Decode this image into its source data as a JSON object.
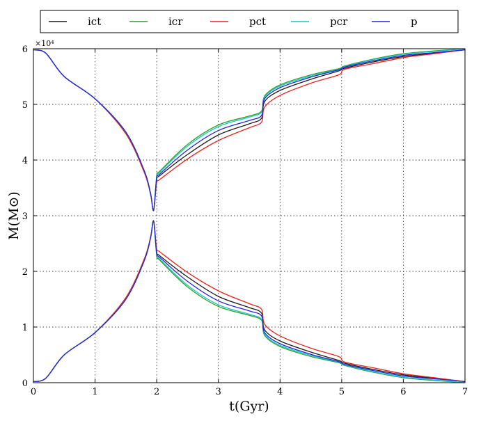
{
  "chart_data": {
    "type": "line",
    "xlabel": "t(Gyr)",
    "ylabel": "M(M⊙)",
    "y_scale_note": "×10⁴",
    "xlim": [
      0,
      7
    ],
    "ylim": [
      0,
      60000
    ],
    "x_ticks": [
      0,
      1,
      2,
      3,
      4,
      5,
      6,
      7
    ],
    "y_ticks": [
      0,
      10000,
      20000,
      30000,
      40000,
      50000,
      60000
    ],
    "y_tick_labels": [
      "0",
      "1",
      "2",
      "3",
      "4",
      "5",
      "6"
    ],
    "grid": true,
    "legend_position": "top",
    "series": [
      {
        "name": "ict",
        "color": "#1a1a1a",
        "x": [
          0,
          0.2,
          0.5,
          1.0,
          1.5,
          1.8,
          1.9,
          1.95,
          2.0,
          2.05,
          2.5,
          3.0,
          3.5,
          3.7,
          3.75,
          4.0,
          4.5,
          4.95,
          5.05,
          5.5,
          6.0,
          6.5,
          7.0
        ],
        "y_a": [
          59800,
          59200,
          55000,
          51000,
          45000,
          38000,
          34000,
          31000,
          36500,
          37200,
          41000,
          44500,
          46500,
          47500,
          50500,
          52500,
          54500,
          56000,
          56500,
          57600,
          58600,
          59200,
          59800
        ],
        "y_b": [
          200,
          800,
          5000,
          9000,
          15000,
          22000,
          26000,
          29000,
          23500,
          22800,
          19000,
          15500,
          13500,
          12500,
          9500,
          7500,
          5500,
          4000,
          3500,
          2400,
          1400,
          800,
          200
        ]
      },
      {
        "name": "icr",
        "color": "#2ca02c",
        "x": [
          0,
          0.2,
          0.5,
          1.0,
          1.5,
          1.8,
          1.9,
          1.95,
          2.0,
          2.05,
          2.5,
          3.0,
          3.5,
          3.7,
          3.75,
          4.0,
          4.5,
          4.95,
          5.05,
          5.5,
          6.0,
          6.5,
          7.0
        ],
        "y_a": [
          59800,
          59200,
          55000,
          51000,
          45000,
          38000,
          34000,
          31000,
          37200,
          38000,
          42800,
          46300,
          47900,
          48800,
          51500,
          53500,
          55300,
          56400,
          56900,
          58100,
          59100,
          59600,
          60000
        ],
        "y_b": [
          200,
          800,
          5000,
          9000,
          15000,
          22000,
          26000,
          29000,
          22800,
          22000,
          17200,
          13700,
          12100,
          11200,
          8500,
          6500,
          4700,
          3600,
          3100,
          1900,
          900,
          400,
          0
        ]
      },
      {
        "name": "pct",
        "color": "#e8231e",
        "x": [
          0,
          0.2,
          0.5,
          1.0,
          1.5,
          1.8,
          1.9,
          1.95,
          2.0,
          2.05,
          2.5,
          3.0,
          3.5,
          3.7,
          3.75,
          4.0,
          4.5,
          4.95,
          5.05,
          5.5,
          6.0,
          6.5,
          7.0
        ],
        "y_a": [
          59800,
          59200,
          55000,
          51000,
          44700,
          37700,
          33800,
          30900,
          36000,
          36500,
          40200,
          43500,
          45800,
          46800,
          49500,
          51600,
          53800,
          55300,
          56300,
          57300,
          58400,
          59100,
          59800
        ],
        "y_b": [
          200,
          800,
          5000,
          9000,
          15300,
          22300,
          26200,
          29100,
          24000,
          23500,
          19800,
          16500,
          14200,
          13200,
          10500,
          8400,
          6200,
          4700,
          3700,
          2700,
          1600,
          900,
          200
        ]
      },
      {
        "name": "pcr",
        "color": "#19c4c4",
        "x": [
          0,
          0.2,
          0.5,
          1.0,
          1.5,
          1.8,
          1.9,
          1.95,
          2.0,
          2.05,
          2.5,
          3.0,
          3.5,
          3.7,
          3.75,
          4.0,
          4.5,
          4.95,
          5.05,
          5.5,
          6.0,
          6.5,
          7.0
        ],
        "y_a": [
          59800,
          59200,
          55000,
          51000,
          45000,
          38000,
          34000,
          31000,
          37000,
          37800,
          42500,
          46000,
          47700,
          48600,
          51300,
          53300,
          55100,
          56300,
          56800,
          58000,
          59000,
          59500,
          60000
        ],
        "y_b": [
          200,
          800,
          5000,
          9000,
          15000,
          22000,
          26000,
          29000,
          23000,
          22200,
          17500,
          14000,
          12300,
          11400,
          8700,
          6700,
          4900,
          3700,
          3200,
          2000,
          1000,
          500,
          0
        ]
      },
      {
        "name": "p",
        "color": "#2323e0",
        "x": [
          0,
          0.2,
          0.5,
          1.0,
          1.5,
          1.8,
          1.9,
          1.95,
          2.0,
          2.05,
          2.5,
          3.0,
          3.5,
          3.7,
          3.75,
          4.0,
          4.5,
          4.95,
          5.05,
          5.5,
          6.0,
          6.5,
          7.0
        ],
        "y_a": [
          59800,
          59200,
          55000,
          51000,
          45000,
          38000,
          34000,
          31000,
          36800,
          37500,
          41800,
          45300,
          47100,
          48000,
          51000,
          53000,
          54900,
          56200,
          56700,
          57800,
          58800,
          59300,
          59800
        ],
        "y_b": [
          200,
          800,
          5000,
          9000,
          15000,
          22000,
          26000,
          29000,
          23200,
          22500,
          18200,
          14700,
          12900,
          12000,
          9000,
          7000,
          5100,
          3800,
          3300,
          2200,
          1200,
          700,
          200
        ]
      }
    ]
  }
}
